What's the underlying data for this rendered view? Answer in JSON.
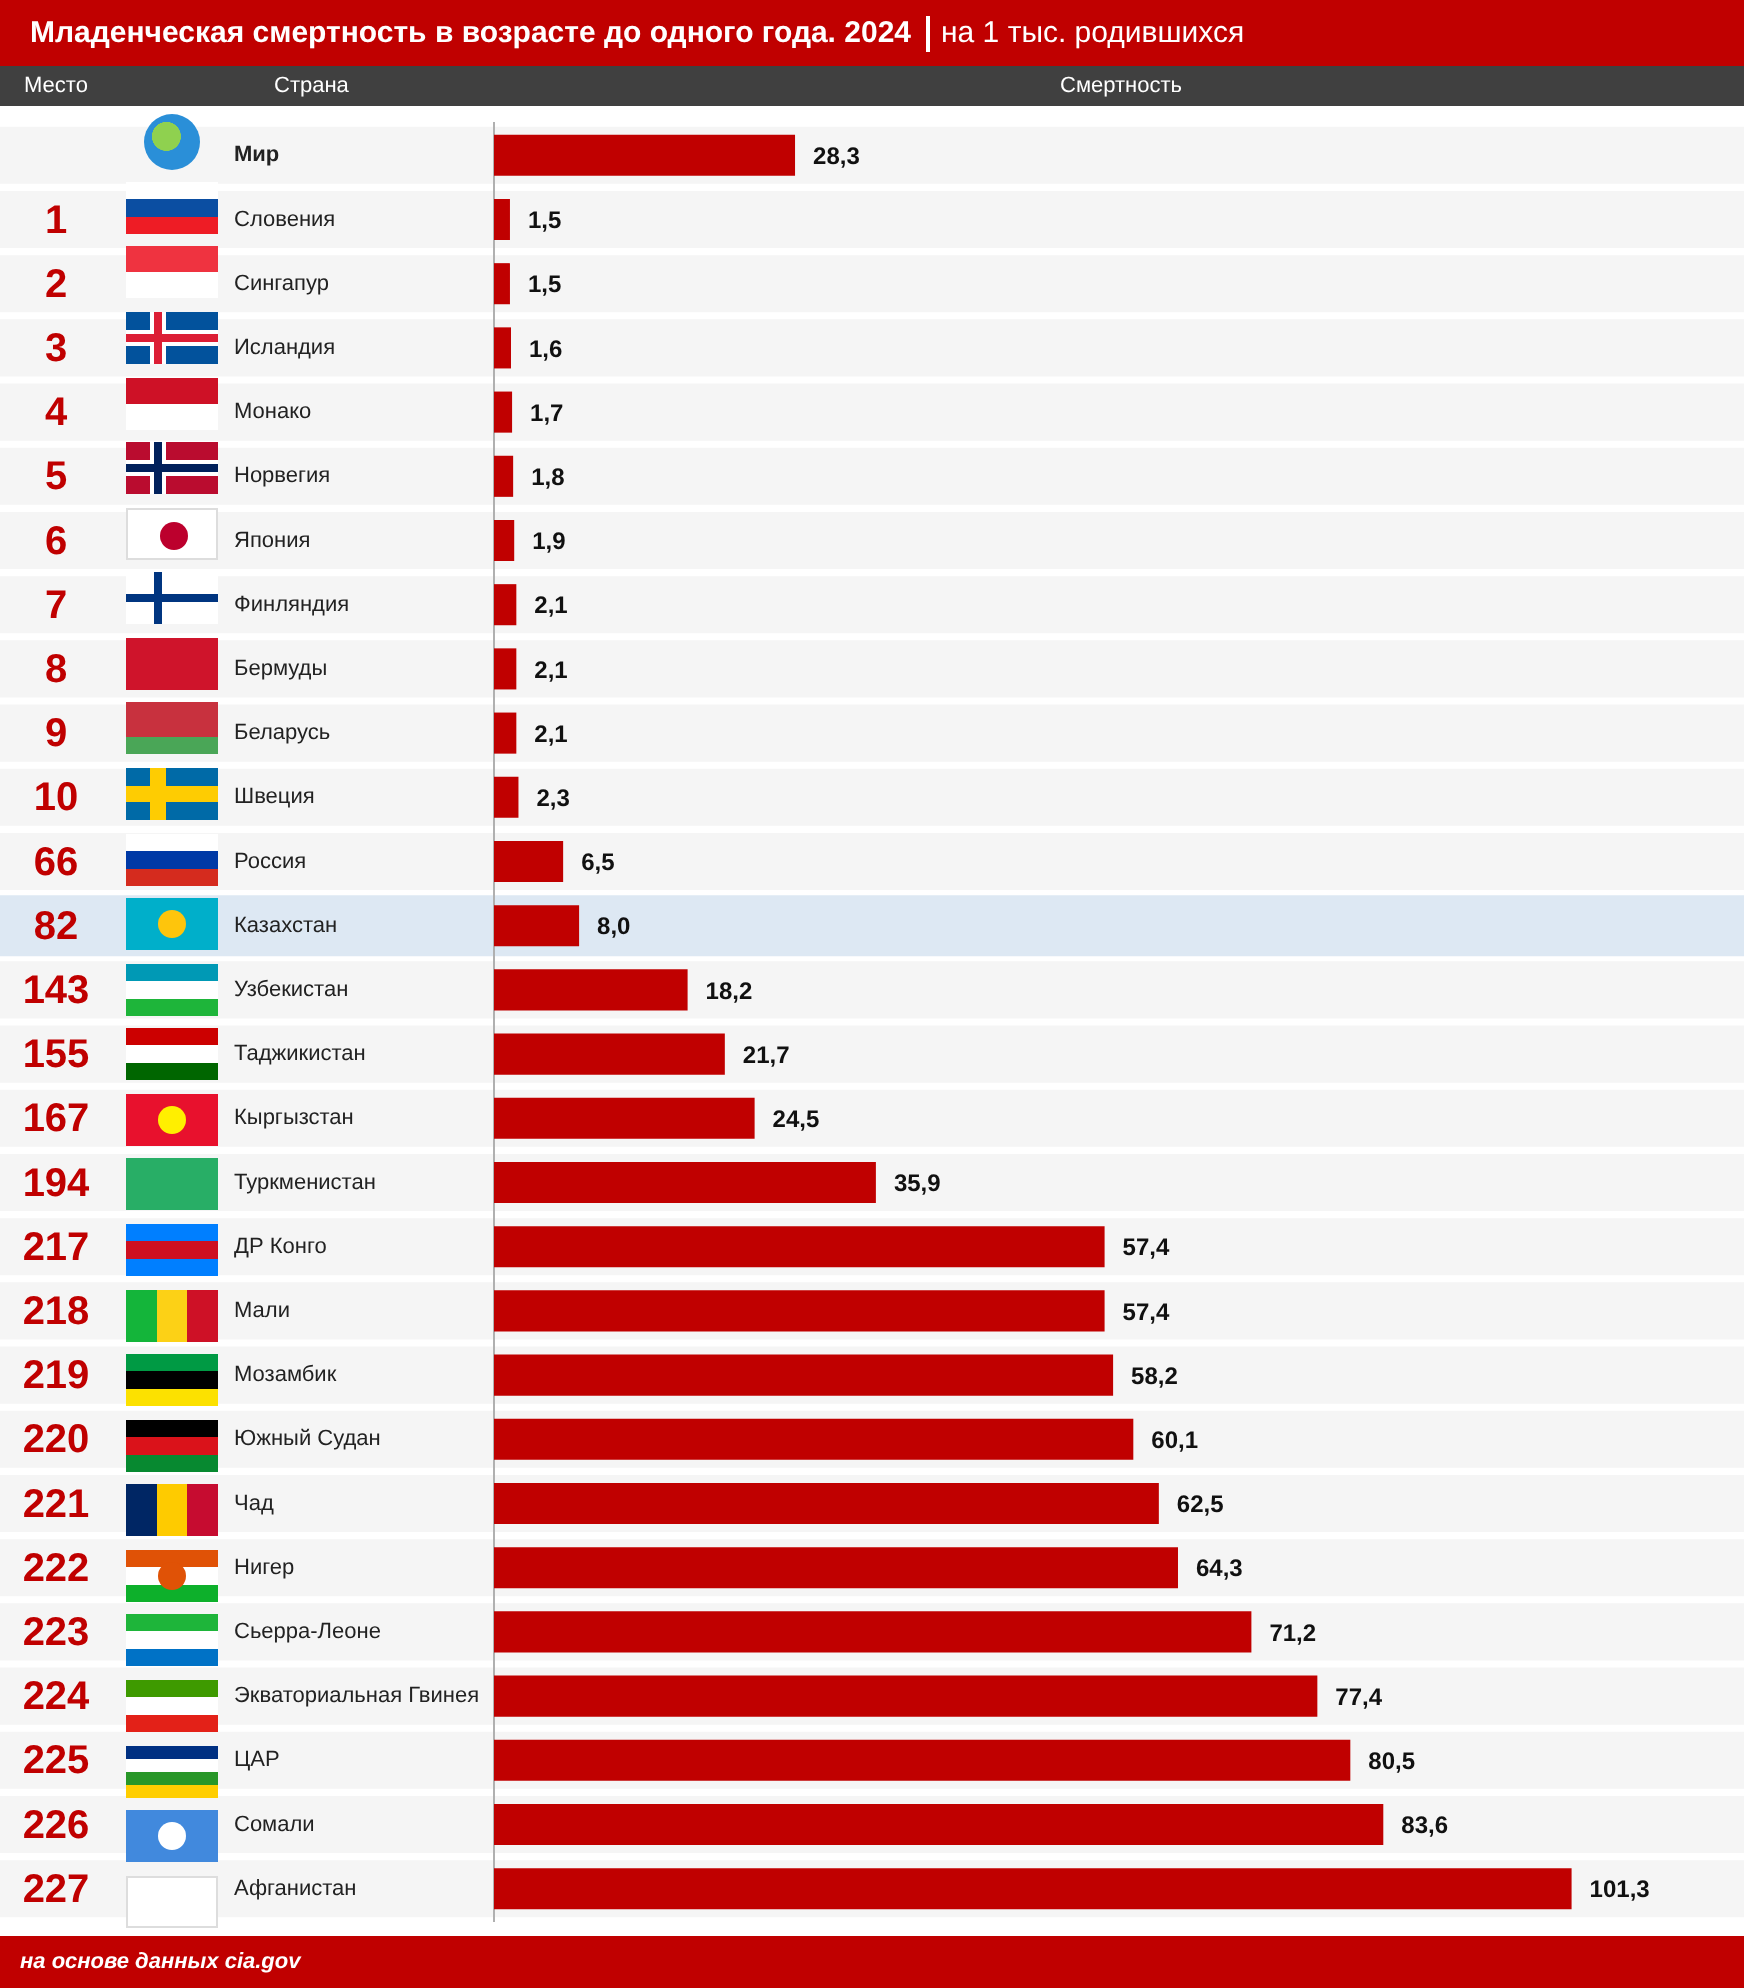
{
  "chart_data": {
    "type": "bar",
    "orientation": "horizontal",
    "title": "Младенческая смертность в возрасте до одного года. 2024",
    "subtitle": "на 1 тыс. родившихся",
    "categories": [
      "Мир",
      "Словения",
      "Сингапур",
      "Исландия",
      "Монако",
      "Норвегия",
      "Япония",
      "Финляндия",
      "Бермуды",
      "Беларусь",
      "Швеция",
      "Россия",
      "Казахстан",
      "Узбекистан",
      "Таджикистан",
      "Кыргызстан",
      "Туркменистан",
      "ДР Конго",
      "Мали",
      "Мозамбик",
      "Южный Судан",
      "Чад",
      "Нигер",
      "Сьерра-Леоне",
      "Экваториальная Гвинея",
      "ЦАР",
      "Сомали",
      "Афганистан"
    ],
    "values": [
      28.3,
      1.5,
      1.5,
      1.6,
      1.7,
      1.8,
      1.9,
      2.1,
      2.1,
      2.1,
      2.3,
      6.5,
      8.0,
      18.2,
      21.7,
      24.5,
      35.9,
      57.4,
      57.4,
      58.2,
      60.1,
      62.5,
      64.3,
      71.2,
      77.4,
      80.5,
      83.6,
      101.3
    ],
    "value_labels": [
      "28,3",
      "1,5",
      "1,5",
      "1,6",
      "1,7",
      "1,8",
      "1,9",
      "2,1",
      "2,1",
      "2,1",
      "2,3",
      "6,5",
      "8,0",
      "18,2",
      "21,7",
      "24,5",
      "35,9",
      "57,4",
      "57,4",
      "58,2",
      "60,1",
      "62,5",
      "64,3",
      "71,2",
      "77,4",
      "80,5",
      "83,6",
      "101,3"
    ],
    "color": "#c00000",
    "bands": [
      {
        "axis": "y",
        "from": "Казахстан",
        "to": "Казахстан",
        "color": "#dde8f3"
      }
    ],
    "annotations": [
      "Место",
      "Страна",
      "Смертность",
      "1",
      "2",
      "3",
      "4",
      "5",
      "6",
      "7",
      "8",
      "9",
      "10",
      "66",
      "82",
      "143",
      "155",
      "167",
      "194",
      "217",
      "218",
      "219",
      "220",
      "221",
      "222",
      "223",
      "224",
      "225",
      "226",
      "227",
      "на основе данных cia.gov"
    ],
    "legend": false
  }
}
